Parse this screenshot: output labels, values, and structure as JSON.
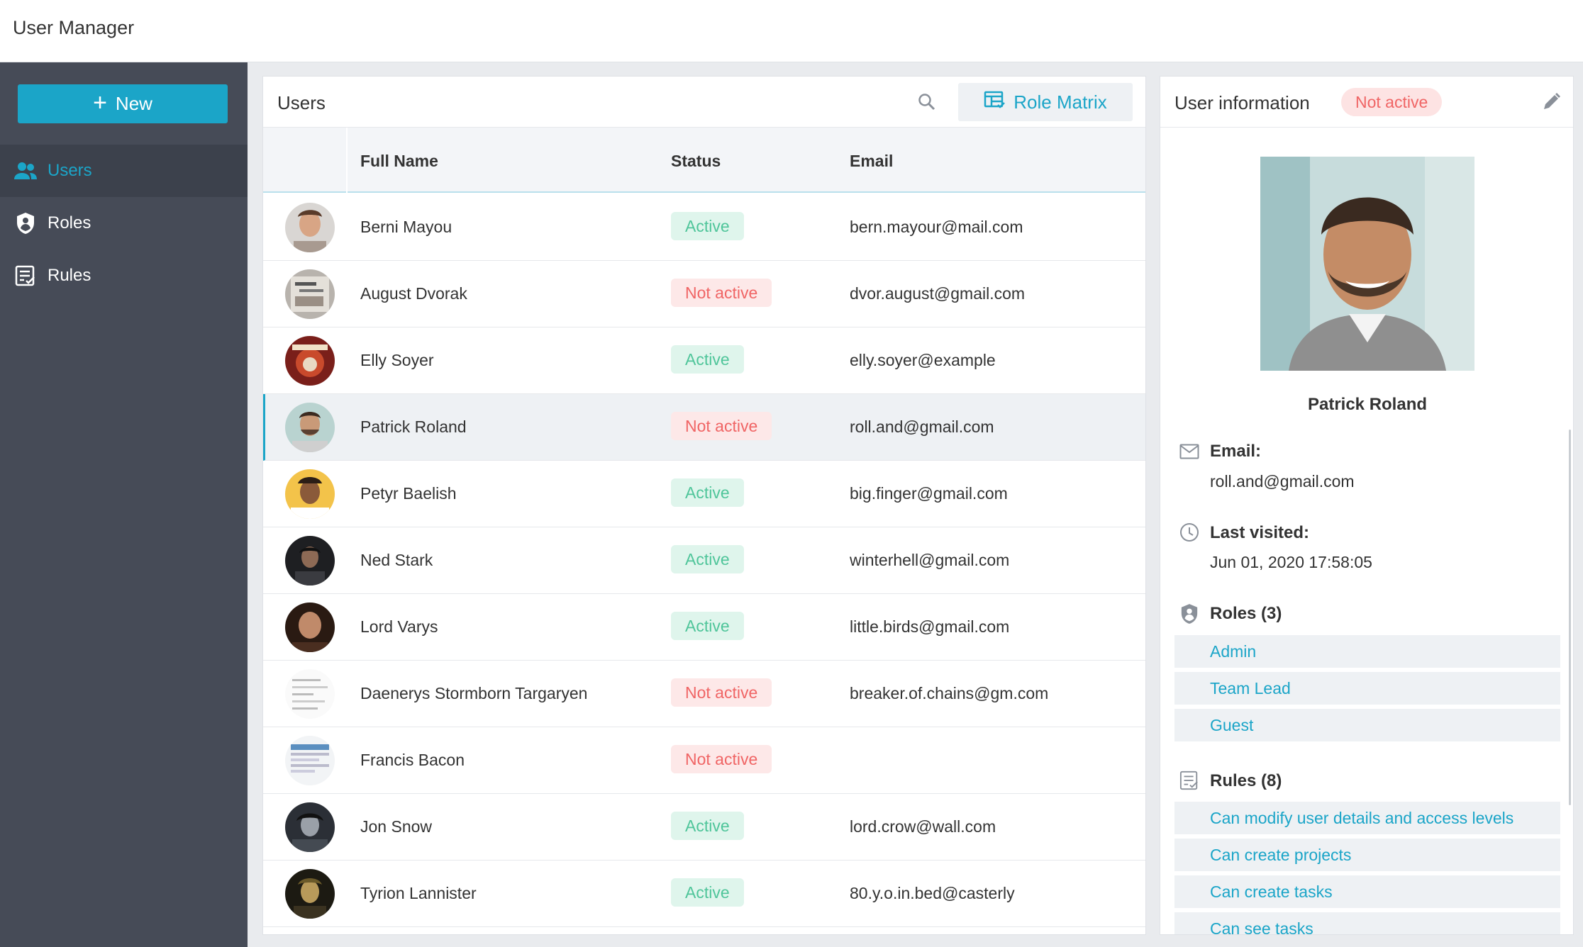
{
  "app": {
    "title": "User Manager"
  },
  "sidebar": {
    "new_label": "New",
    "items": [
      {
        "label": "Users",
        "icon": "users-icon"
      },
      {
        "label": "Roles",
        "icon": "shield-icon"
      },
      {
        "label": "Rules",
        "icon": "rules-icon"
      }
    ]
  },
  "users_panel": {
    "title": "Users",
    "role_matrix_label": "Role Matrix",
    "columns": {
      "name": "Full Name",
      "status": "Status",
      "email": "Email"
    },
    "rows": [
      {
        "name": "Berni Mayou",
        "status": "Active",
        "email": "bern.mayour@mail.com"
      },
      {
        "name": "August Dvorak",
        "status": "Not active",
        "email": "dvor.august@gmail.com"
      },
      {
        "name": "Elly Soyer",
        "status": "Active",
        "email": "elly.soyer@example"
      },
      {
        "name": "Patrick Roland",
        "status": "Not active",
        "email": "roll.and@gmail.com"
      },
      {
        "name": "Petyr Baelish",
        "status": "Active",
        "email": "big.finger@gmail.com"
      },
      {
        "name": "Ned Stark",
        "status": "Active",
        "email": "winterhell@gmail.com"
      },
      {
        "name": "Lord Varys",
        "status": "Active",
        "email": "little.birds@gmail.com"
      },
      {
        "name": "Daenerys Stormborn Targaryen",
        "status": "Not active",
        "email": "breaker.of.chains@gm.com"
      },
      {
        "name": "Francis Bacon",
        "status": "Not active",
        "email": ""
      },
      {
        "name": "Jon Snow",
        "status": "Active",
        "email": "lord.crow@wall.com"
      },
      {
        "name": "Tyrion Lannister",
        "status": "Active",
        "email": "80.y.o.in.bed@casterly"
      }
    ]
  },
  "info_panel": {
    "title": "User information",
    "status": "Not active",
    "name": "Patrick Roland",
    "email_label": "Email:",
    "email": "roll.and@gmail.com",
    "last_visited_label": "Last visited:",
    "last_visited": "Jun 01, 2020 17:58:05",
    "roles_label": "Roles (3)",
    "roles": [
      "Admin",
      "Team Lead",
      "Guest"
    ],
    "rules_label": "Rules (8)",
    "rules": [
      "Can modify user details and access levels",
      "Can create projects",
      "Can create tasks",
      "Can see tasks"
    ]
  },
  "colors": {
    "accent": "#1ba5c8",
    "sidebar": "#464b57",
    "active": "#4fc59a",
    "inactive": "#f06565"
  }
}
